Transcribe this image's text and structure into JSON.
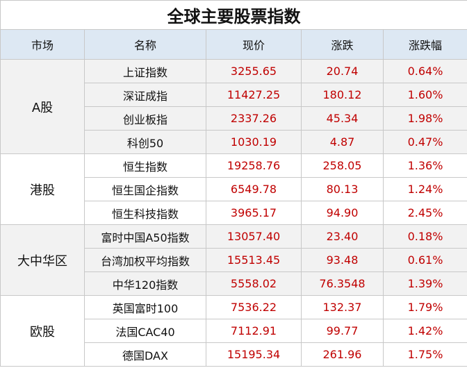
{
  "title": "全球主要股票指数",
  "table": {
    "headers": [
      "市场",
      "名称",
      "现价",
      "涨跌",
      "涨跌幅"
    ],
    "groups": [
      {
        "market": "A股",
        "rows": [
          [
            "上证指数",
            "3255.65",
            "20.74",
            "0.64%"
          ],
          [
            "深证成指",
            "11427.25",
            "180.12",
            "1.60%"
          ],
          [
            "创业板指",
            "2337.26",
            "45.34",
            "1.98%"
          ],
          [
            "科创50",
            "1030.19",
            "4.87",
            "0.47%"
          ]
        ]
      },
      {
        "market": "港股",
        "rows": [
          [
            "恒生指数",
            "19258.76",
            "258.05",
            "1.36%"
          ],
          [
            "恒生国企指数",
            "6549.78",
            "80.13",
            "1.24%"
          ],
          [
            "恒生科技指数",
            "3965.17",
            "94.90",
            "2.45%"
          ]
        ]
      },
      {
        "market": "大中华区",
        "rows": [
          [
            "富时中国A50指数",
            "13057.40",
            "23.40",
            "0.18%"
          ],
          [
            "台湾加权平均指数",
            "15513.45",
            "93.48",
            "0.61%"
          ],
          [
            "中华120指数",
            "5558.02",
            "76.3548",
            "1.39%"
          ]
        ]
      },
      {
        "market": "欧股",
        "rows": [
          [
            "英国富时100",
            "7536.22",
            "132.37",
            "1.79%"
          ],
          [
            "法国CAC40",
            "7112.91",
            "99.77",
            "1.42%"
          ],
          [
            "德国DAX",
            "15195.34",
            "261.96",
            "1.75%"
          ]
        ]
      }
    ]
  }
}
